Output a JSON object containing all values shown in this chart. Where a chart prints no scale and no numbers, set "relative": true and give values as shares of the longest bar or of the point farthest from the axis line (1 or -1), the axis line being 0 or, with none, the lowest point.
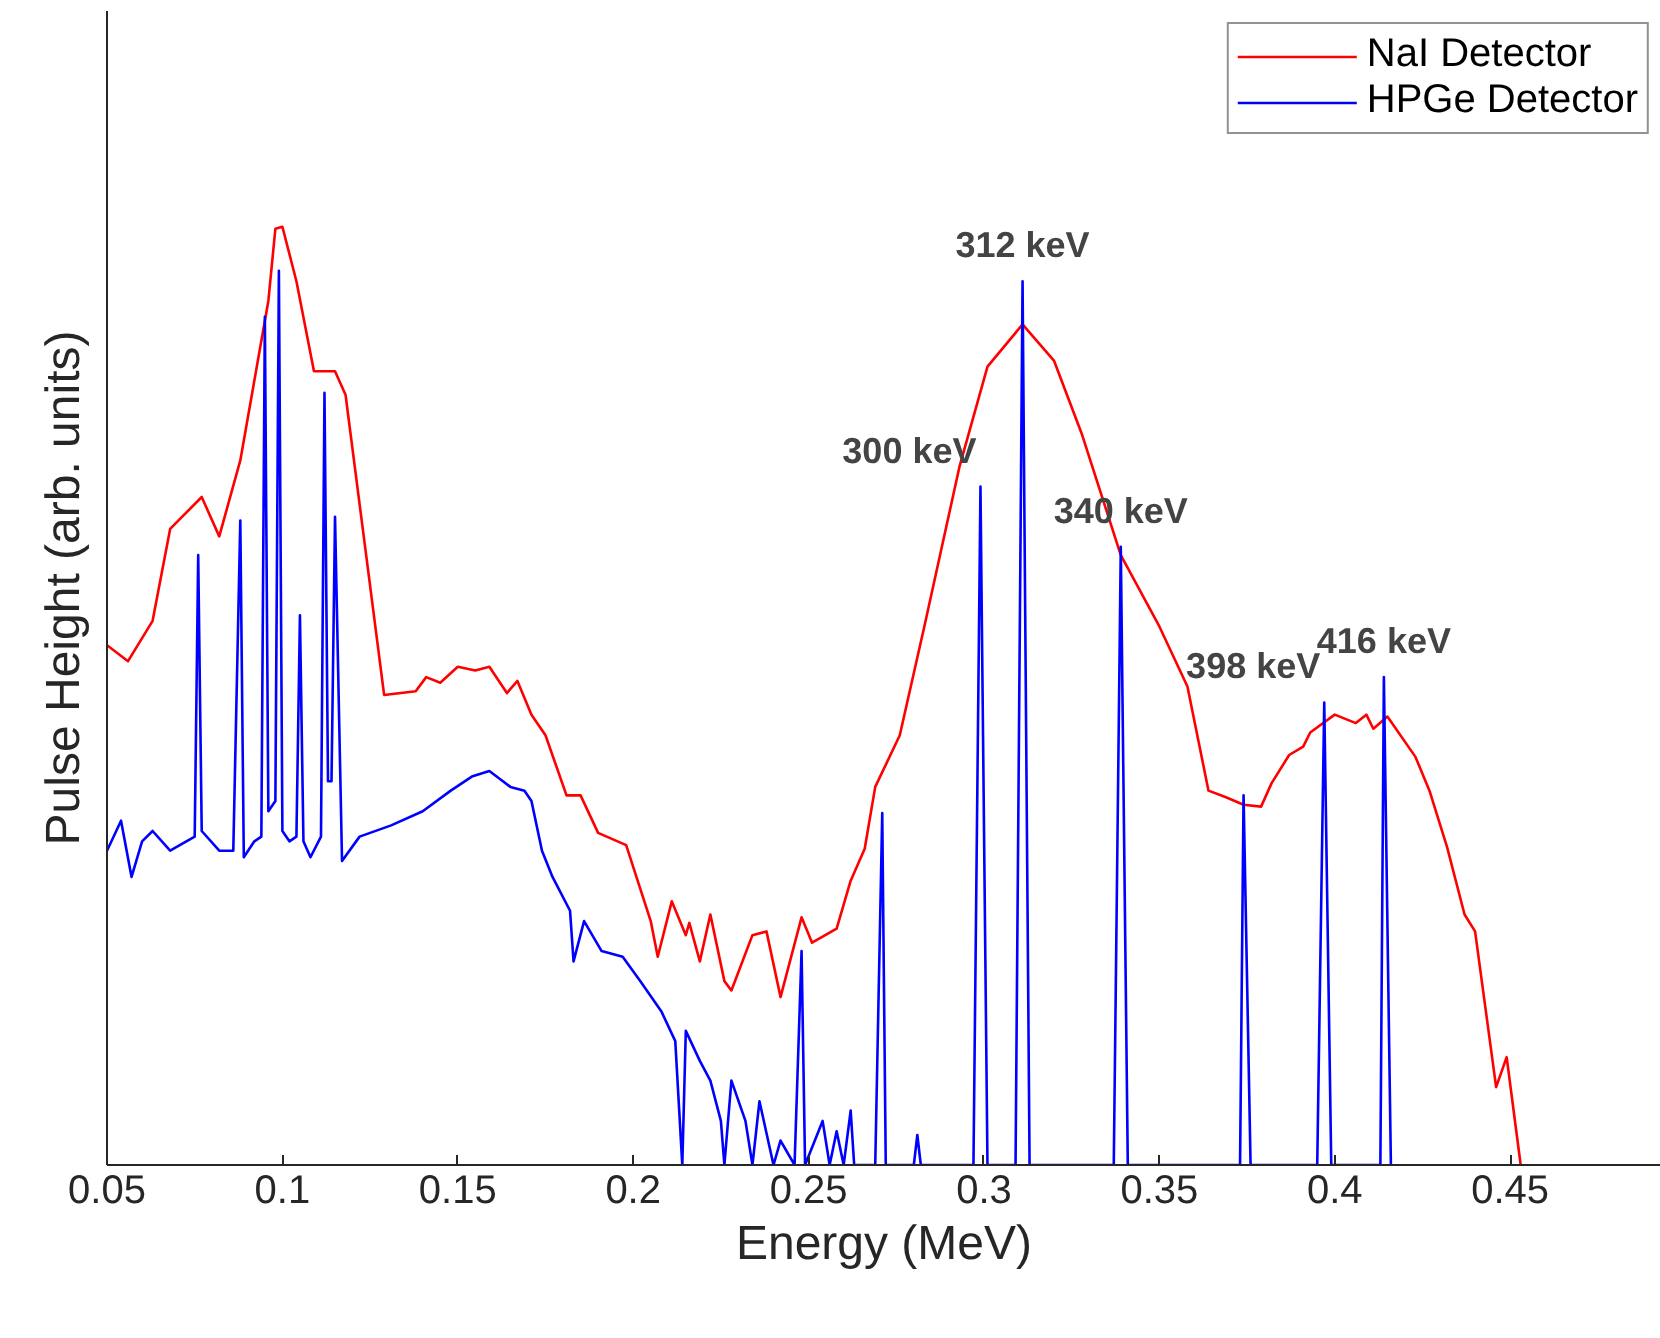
{
  "chart_data": {
    "type": "line",
    "xlabel": "Energy (MeV)",
    "ylabel": "Pulse Height (arb. units)",
    "relative": true,
    "xlim": [
      0.05,
      0.493
    ],
    "xticks": [
      0.05,
      0.1,
      0.15,
      0.2,
      0.25,
      0.3,
      0.35,
      0.4,
      0.45
    ],
    "tick_labels": "x",
    "grid": false,
    "legend": "top right",
    "line_style": "solid",
    "marker": "none",
    "series": [
      {
        "name": "NaI Detector",
        "color": "#ff0000",
        "x": [
          0.05,
          0.056,
          0.063,
          0.068,
          0.077,
          0.082,
          0.088,
          0.096,
          0.098,
          0.1,
          0.104,
          0.109,
          0.115,
          0.118,
          0.129,
          0.138,
          0.141,
          0.145,
          0.15,
          0.155,
          0.159,
          0.164,
          0.167,
          0.171,
          0.175,
          0.181,
          0.185,
          0.19,
          0.198,
          0.205,
          0.207,
          0.211,
          0.215,
          0.216,
          0.219,
          0.222,
          0.226,
          0.228,
          0.234,
          0.238,
          0.242,
          0.248,
          0.251,
          0.258,
          0.262,
          0.266,
          0.269,
          0.276,
          0.283,
          0.293,
          0.301,
          0.311,
          0.32,
          0.328,
          0.339,
          0.35,
          0.358,
          0.364,
          0.369,
          0.374,
          0.379,
          0.382,
          0.387,
          0.391,
          0.393,
          0.4,
          0.406,
          0.409,
          0.411,
          0.415,
          0.423,
          0.427,
          0.432,
          0.437,
          0.44,
          0.446,
          0.449,
          0.453
        ],
        "values": [
          0.554,
          0.537,
          0.58,
          0.678,
          0.712,
          0.67,
          0.751,
          0.921,
          0.998,
          1.0,
          0.942,
          0.846,
          0.846,
          0.821,
          0.501,
          0.505,
          0.52,
          0.514,
          0.531,
          0.527,
          0.531,
          0.503,
          0.516,
          0.48,
          0.458,
          0.394,
          0.394,
          0.354,
          0.341,
          0.26,
          0.222,
          0.281,
          0.245,
          0.258,
          0.217,
          0.267,
          0.196,
          0.186,
          0.245,
          0.249,
          0.179,
          0.264,
          0.237,
          0.252,
          0.303,
          0.337,
          0.403,
          0.458,
          0.574,
          0.744,
          0.851,
          0.896,
          0.857,
          0.778,
          0.65,
          0.574,
          0.51,
          0.399,
          0.392,
          0.384,
          0.382,
          0.407,
          0.437,
          0.446,
          0.461,
          0.48,
          0.471,
          0.48,
          0.465,
          0.478,
          0.435,
          0.399,
          0.339,
          0.267,
          0.249,
          0.083,
          0.115,
          0
        ]
      },
      {
        "name": "HPGe Detector",
        "color": "#0000ff",
        "x": [
          0.05,
          0.054,
          0.057,
          0.06,
          0.063,
          0.068,
          0.075,
          0.076,
          0.077,
          0.082,
          0.086,
          0.088,
          0.089,
          0.092,
          0.094,
          0.095,
          0.096,
          0.098,
          0.099,
          0.1,
          0.102,
          0.104,
          0.105,
          0.106,
          0.108,
          0.111,
          0.112,
          0.113,
          0.114,
          0.115,
          0.117,
          0.122,
          0.131,
          0.14,
          0.148,
          0.154,
          0.159,
          0.165,
          0.169,
          0.171,
          0.174,
          0.177,
          0.182,
          0.183,
          0.186,
          0.191,
          0.197,
          0.202,
          0.208,
          0.212,
          0.214,
          0.215,
          0.219,
          0.222,
          0.225,
          0.226,
          0.228,
          0.232,
          0.234,
          0.236,
          0.24,
          0.242,
          0.246,
          0.248,
          0.249,
          0.254,
          0.256,
          0.258,
          0.26,
          0.262,
          0.263,
          0.269,
          0.271,
          0.272,
          0.28,
          0.281,
          0.282,
          0.297,
          0.299,
          0.301,
          0.309,
          0.311,
          0.313,
          0.337,
          0.339,
          0.341,
          0.373,
          0.374,
          0.376,
          0.395,
          0.397,
          0.399,
          0.413,
          0.414,
          0.416
        ],
        "values": [
          0.335,
          0.367,
          0.307,
          0.345,
          0.356,
          0.335,
          0.35,
          0.65,
          0.356,
          0.335,
          0.335,
          0.687,
          0.328,
          0.345,
          0.35,
          0.904,
          0.377,
          0.388,
          0.953,
          0.356,
          0.345,
          0.35,
          0.586,
          0.345,
          0.328,
          0.35,
          0.823,
          0.409,
          0.409,
          0.691,
          0.324,
          0.35,
          0.362,
          0.377,
          0.399,
          0.414,
          0.42,
          0.403,
          0.399,
          0.388,
          0.335,
          0.307,
          0.271,
          0.217,
          0.26,
          0.228,
          0.222,
          0.196,
          0.164,
          0.132,
          0,
          0.143,
          0.111,
          0.09,
          0.047,
          0,
          0.09,
          0.047,
          0,
          0.068,
          0,
          0.026,
          0,
          0.228,
          0,
          0.047,
          0,
          0.036,
          0,
          0.058,
          0,
          0,
          0.375,
          0,
          0,
          0.032,
          0,
          0,
          0.723,
          0,
          0,
          0.942,
          0,
          0,
          0.659,
          0,
          0,
          0.394,
          0,
          0,
          0.493,
          0,
          0,
          0.52,
          0
        ]
      }
    ],
    "annotations": [
      {
        "text": "300 keV",
        "x": 0.299,
        "y": 0.723
      },
      {
        "text": "312 keV",
        "x": 0.311,
        "y": 0.942
      },
      {
        "text": "340 keV",
        "x": 0.339,
        "y": 0.659
      },
      {
        "text": "398 keV",
        "x": 0.397,
        "y": 0.493
      },
      {
        "text": "416 keV",
        "x": 0.414,
        "y": 0.52
      }
    ]
  }
}
